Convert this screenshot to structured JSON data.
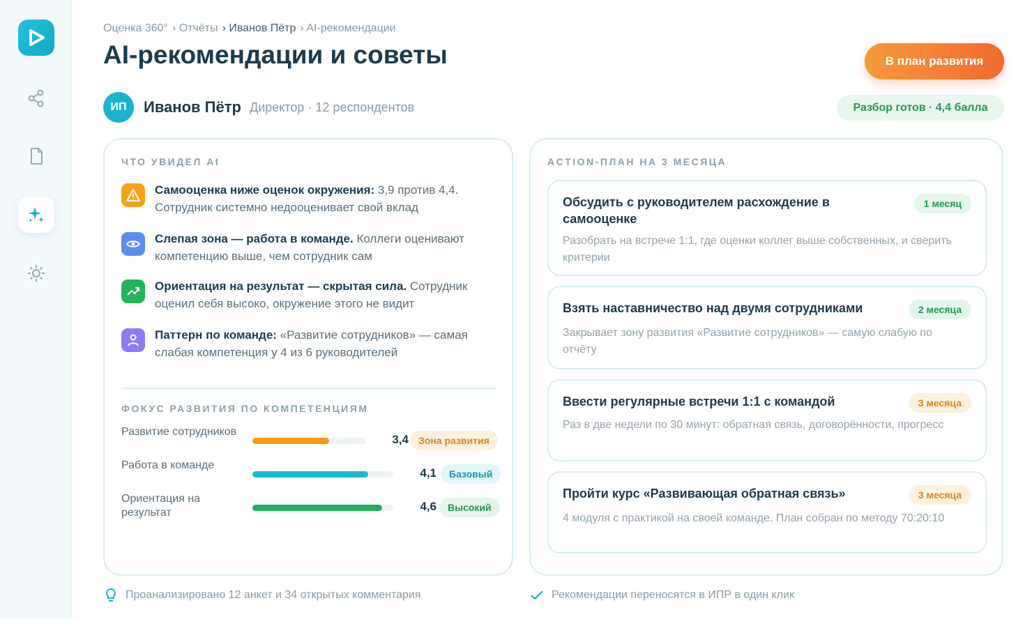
{
  "breadcrumb": [
    "Оценка 360°",
    "Отчёты",
    "Иванов Пётр",
    "AI-рекомендации"
  ],
  "title": "AI-рекомендации и советы",
  "button": "В план развития",
  "person": {
    "initials": "ИП",
    "name": "Иванов Пётр",
    "meta": "Директор · 12 респондентов"
  },
  "status": "Разбор готов · 4,4 балла",
  "insights": {
    "heading": "ЧТО УВИДЕЛ AI",
    "items": [
      {
        "bold": "Самооценка ниже оценок окружения:",
        "text": "3,9 против 4,4. Сотрудник системно недооценивает свой вклад"
      },
      {
        "bold": "Слепая зона — работа в команде.",
        "text": "Коллеги оценивают компетенцию выше, чем сотрудник сам"
      },
      {
        "bold": "Ориентация на результат — скрытая сила.",
        "text": "Сотрудник оценил себя высоко, окружение этого не видит"
      },
      {
        "bold": "Паттерн по команде:",
        "text": "«Развитие сотрудников» — самая слабая компетенция у 4 из 6 руководителей"
      }
    ]
  },
  "competencies": {
    "heading": "ФОКУС РАЗВИТИЯ ПО КОМПЕТЕНЦИЯМ",
    "scale_max": 5,
    "items": [
      {
        "name": "Развитие сотрудников",
        "score": {
          "value": 3.4,
          "label": "3,4"
        },
        "level": "Зона развития"
      },
      {
        "name": "Работа в команде",
        "score": {
          "value": 4.1,
          "label": "4,1"
        },
        "level": "Базовый"
      },
      {
        "name": "Ориентация на результат",
        "score": {
          "value": 4.6,
          "label": "4,6"
        },
        "level": "Высокий"
      }
    ]
  },
  "action_plan": {
    "heading": "ACTION-ПЛАН НА 3 МЕСЯЦА",
    "items": [
      {
        "title": "Обсудить с руководителем расхождение в самооценке",
        "duration": "1 месяц",
        "description": "Разобрать на встрече 1:1, где оценки коллег выше собственных, и сверить критерии"
      },
      {
        "title": "Взять наставничество над двумя сотрудниками",
        "duration": "2 месяца",
        "description": "Закрывает зону развития «Развитие сотрудников» — самую слабую по отчёту"
      },
      {
        "title": "Ввести регулярные встречи 1:1 с командой",
        "duration": "3 месяца",
        "description": "Раз в две недели по 30 минут: обратная связь, договорённости, прогресс"
      },
      {
        "title": "Пройти курс «Развивающая обратная связь»",
        "duration": "3 месяца",
        "description": "4 модуля с практикой на своей команде. План собран по методу 70:20:10"
      }
    ]
  },
  "footer": [
    "Проанализировано 12 анкет и 34 открытых комментария",
    "Рекомендации переносятся в ИПР в один клик"
  ]
}
